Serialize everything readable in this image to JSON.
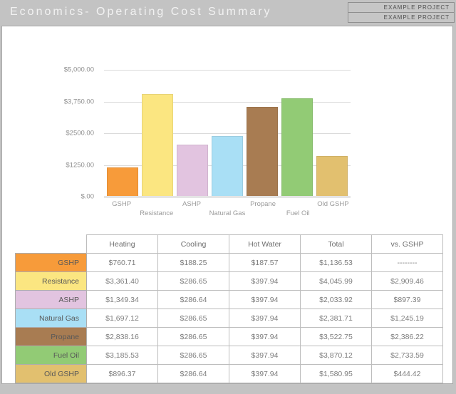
{
  "header": {
    "title": "Economics- Operating Cost Summary",
    "project_labels": [
      "EXAMPLE PROJECT",
      "EXAMPLE PROJECT"
    ]
  },
  "chart_data": {
    "type": "bar",
    "title": "",
    "xlabel": "",
    "ylabel": "",
    "categories": [
      "GSHP",
      "Resistance",
      "ASHP",
      "Natural Gas",
      "Propane",
      "Fuel Oil",
      "Old GSHP"
    ],
    "values": [
      1136.53,
      4045.99,
      2033.92,
      2381.71,
      3522.75,
      3870.12,
      1580.95
    ],
    "colors": [
      "#f79b3a",
      "#fbe681",
      "#e2c4e0",
      "#a9dff5",
      "#a87c52",
      "#92cb75",
      "#e2c06f"
    ],
    "y_tick_labels": [
      "$5,000.00",
      "$3,750.00",
      "$2500.00",
      "$1250.00",
      "$.00"
    ],
    "ylim": [
      0,
      5000
    ],
    "grid": true,
    "legend": "none"
  },
  "table": {
    "columns": [
      "Heating",
      "Cooling",
      "Hot Water",
      "Total",
      "vs. GSHP"
    ],
    "rows": [
      {
        "label": "GSHP",
        "color": "#f79b3a",
        "cells": [
          "$760.71",
          "$188.25",
          "$187.57",
          "$1,136.53",
          "--------"
        ]
      },
      {
        "label": "Resistance",
        "color": "#fbe681",
        "cells": [
          "$3,361.40",
          "$286.65",
          "$397.94",
          "$4,045.99",
          "$2,909.46"
        ]
      },
      {
        "label": "ASHP",
        "color": "#e2c4e0",
        "cells": [
          "$1,349.34",
          "$286.64",
          "$397.94",
          "$2,033.92",
          "$897.39"
        ]
      },
      {
        "label": "Natural Gas",
        "color": "#a9dff5",
        "cells": [
          "$1,697.12",
          "$286.65",
          "$397.94",
          "$2,381.71",
          "$1,245.19"
        ]
      },
      {
        "label": "Propane",
        "color": "#a87c52",
        "cells": [
          "$2,838.16",
          "$286.65",
          "$397.94",
          "$3,522.75",
          "$2,386.22"
        ]
      },
      {
        "label": "Fuel Oil",
        "color": "#92cb75",
        "cells": [
          "$3,185.53",
          "$286.65",
          "$397.94",
          "$3,870.12",
          "$2,733.59"
        ]
      },
      {
        "label": "Old GSHP",
        "color": "#e2c06f",
        "cells": [
          "$896.37",
          "$286.64",
          "$397.94",
          "$1,580.95",
          "$444.42"
        ]
      }
    ]
  }
}
